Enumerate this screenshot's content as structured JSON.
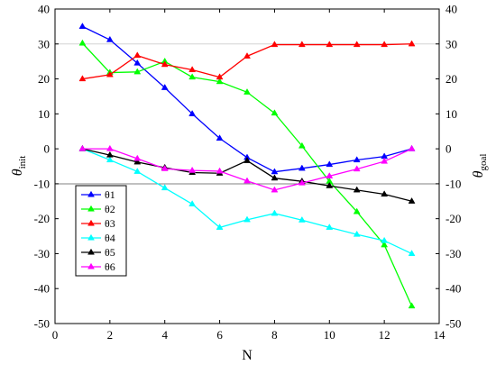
{
  "chart_data": {
    "type": "line",
    "title": "",
    "xlabel": "N",
    "ylabel_left": {
      "main": "θ",
      "sub": "init"
    },
    "ylabel_right": {
      "main": "θ",
      "sub": "goal"
    },
    "xlim": [
      0,
      14
    ],
    "ylim": [
      -50,
      40
    ],
    "xticks": [
      0,
      2,
      4,
      6,
      8,
      10,
      12,
      14
    ],
    "yticks": [
      -50,
      -40,
      -30,
      -20,
      -10,
      0,
      10,
      20,
      30,
      40
    ],
    "x": [
      1,
      2,
      3,
      4,
      5,
      6,
      7,
      8,
      9,
      10,
      11,
      12,
      13
    ],
    "grid": false,
    "reference_lines": [
      30,
      -10
    ],
    "legend_position": "lower-left",
    "marker": "triangle",
    "series": [
      {
        "name": "θ1",
        "color": "#0000ff",
        "values": [
          35,
          31.2,
          24.5,
          17.5,
          10,
          3,
          -2.5,
          -6.6,
          -5.6,
          -4.5,
          -3.2,
          -2.2,
          0
        ]
      },
      {
        "name": "θ2",
        "color": "#00ff00",
        "values": [
          30.2,
          21.8,
          22,
          25,
          20.5,
          19.2,
          16.2,
          10.2,
          0.8,
          -9.3,
          -18,
          -27.5,
          -45
        ]
      },
      {
        "name": "θ3",
        "color": "#ff0000",
        "values": [
          20,
          21.2,
          26.7,
          24.1,
          22.6,
          20.5,
          26.5,
          29.8,
          29.8,
          29.8,
          29.8,
          29.8,
          30
        ]
      },
      {
        "name": "θ4",
        "color": "#00ffff",
        "values": [
          0,
          -3.2,
          -6.5,
          -11.2,
          -15.8,
          -22.5,
          -20.3,
          -18.5,
          -20.4,
          -22.5,
          -24.5,
          -26.3,
          -30
        ]
      },
      {
        "name": "θ5",
        "color": "#000000",
        "values": [
          0,
          -1.8,
          -3.8,
          -5.4,
          -6.8,
          -7,
          -3.4,
          -8.4,
          -9.3,
          -10.6,
          -11.8,
          -13,
          -15
        ]
      },
      {
        "name": "θ6",
        "color": "#ff00ff",
        "values": [
          0,
          0,
          -2.8,
          -5.7,
          -6.2,
          -6.4,
          -9.2,
          -11.8,
          -9.8,
          -7.8,
          -5.8,
          -3.6,
          0
        ]
      }
    ]
  }
}
